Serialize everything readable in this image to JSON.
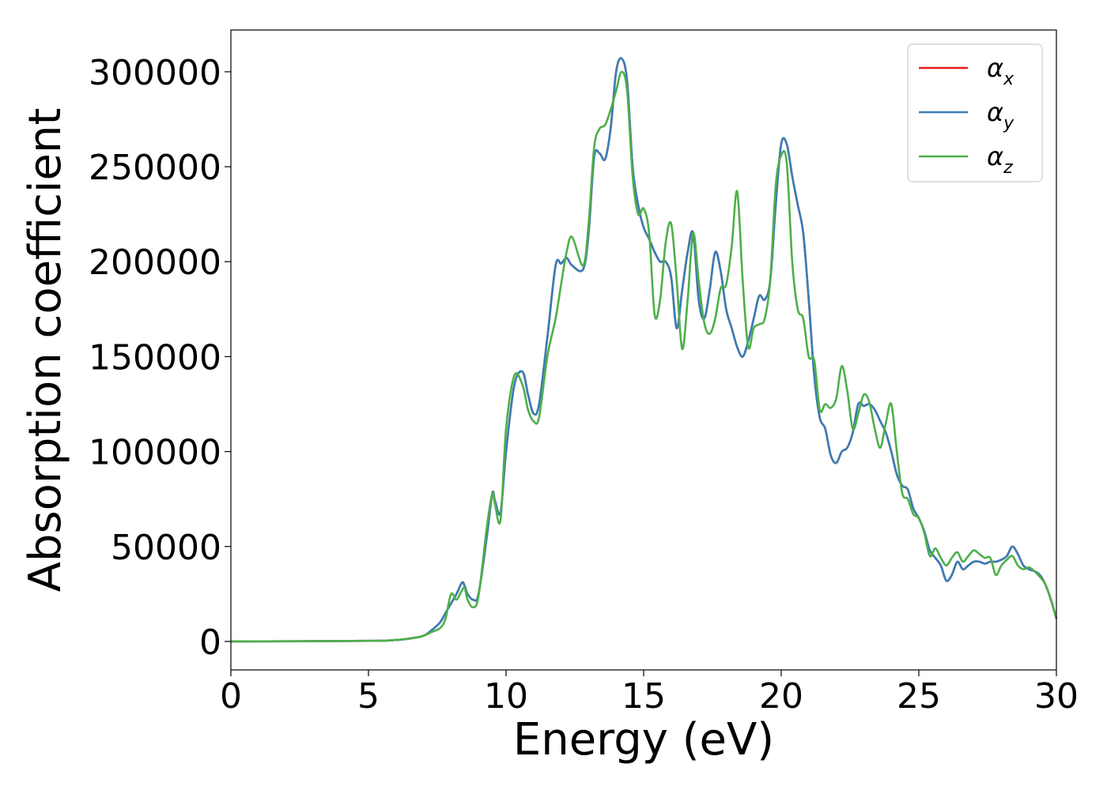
{
  "chart_data": {
    "type": "line",
    "title": "",
    "xlabel": "Energy (eV)",
    "ylabel": "Absorption coefficient",
    "xlim": [
      0,
      30
    ],
    "ylim": [
      -15000,
      322000
    ],
    "xticks": [
      0,
      5,
      10,
      15,
      20,
      25,
      30
    ],
    "xtick_labels": [
      "0",
      "5",
      "10",
      "15",
      "20",
      "25",
      "30"
    ],
    "yticks": [
      0,
      50000,
      100000,
      150000,
      200000,
      250000,
      300000
    ],
    "ytick_labels": [
      "0",
      "50000",
      "100000",
      "150000",
      "200000",
      "250000",
      "300000"
    ],
    "grid": false,
    "legend_position": "top-right",
    "series": [
      {
        "name": "αx",
        "legend_symbol": "α",
        "legend_sub": "x",
        "color": "#e41a1c",
        "x": [
          0,
          5,
          6,
          6.5,
          7,
          7.3,
          7.6,
          7.8,
          8.0,
          8.2,
          8.4,
          8.5,
          8.6,
          8.8,
          9.0,
          9.3,
          9.5,
          9.6,
          9.8,
          10.0,
          10.3,
          10.6,
          10.8,
          11.0,
          11.2,
          11.5,
          11.8,
          12.0,
          12.2,
          12.4,
          12.8,
          13.0,
          13.2,
          13.4,
          13.6,
          13.8,
          14.0,
          14.2,
          14.4,
          14.6,
          14.8,
          15.0,
          15.2,
          15.4,
          15.6,
          15.8,
          16.0,
          16.2,
          16.4,
          16.6,
          16.8,
          17.0,
          17.2,
          17.4,
          17.6,
          17.8,
          18.0,
          18.2,
          18.4,
          18.6,
          18.8,
          19.0,
          19.2,
          19.4,
          19.6,
          19.8,
          20.0,
          20.2,
          20.4,
          20.6,
          20.8,
          21.0,
          21.2,
          21.4,
          21.6,
          21.8,
          22.0,
          22.2,
          22.4,
          22.6,
          22.8,
          23.0,
          23.2,
          23.4,
          23.6,
          23.8,
          24.0,
          24.2,
          24.4,
          24.6,
          24.8,
          25.0,
          25.2,
          25.4,
          25.6,
          25.8,
          26.0,
          26.2,
          26.4,
          26.6,
          26.8,
          27.0,
          27.2,
          27.4,
          27.6,
          27.8,
          28.0,
          28.2,
          28.4,
          28.6,
          28.8,
          29.0,
          29.2,
          29.4,
          29.6,
          29.8,
          30.0
        ],
        "values": [
          0,
          300,
          800,
          1500,
          3000,
          6000,
          10000,
          15000,
          20000,
          25000,
          31000,
          29000,
          25000,
          22000,
          25000,
          55000,
          78000,
          74000,
          68000,
          100000,
          135000,
          142000,
          130000,
          120000,
          125000,
          160000,
          198000,
          199000,
          202000,
          198000,
          196000,
          215000,
          255000,
          257000,
          254000,
          270000,
          300000,
          307000,
          295000,
          250000,
          230000,
          218000,
          212000,
          205000,
          200000,
          200000,
          192000,
          165000,
          185000,
          205000,
          215000,
          180000,
          170000,
          185000,
          205000,
          195000,
          175000,
          165000,
          155000,
          150000,
          158000,
          170000,
          182000,
          180000,
          190000,
          230000,
          262000,
          262000,
          245000,
          230000,
          215000,
          180000,
          140000,
          118000,
          112000,
          98000,
          94000,
          100000,
          102000,
          110000,
          125000,
          124000,
          125000,
          122000,
          116000,
          110000,
          100000,
          88000,
          82000,
          80000,
          70000,
          65000,
          58000,
          48000,
          44000,
          40000,
          32000,
          35000,
          42000,
          38000,
          40000,
          42000,
          42000,
          41000,
          42000,
          42000,
          43000,
          45000,
          50000,
          46000,
          40000,
          38000,
          37000,
          35000,
          30000,
          22000,
          12000
        ]
      },
      {
        "name": "αy",
        "legend_symbol": "α",
        "legend_sub": "y",
        "color": "#377eb8",
        "x": [
          0,
          5,
          6,
          6.5,
          7,
          7.3,
          7.6,
          7.8,
          8.0,
          8.2,
          8.4,
          8.5,
          8.6,
          8.8,
          9.0,
          9.3,
          9.5,
          9.6,
          9.8,
          10.0,
          10.3,
          10.6,
          10.8,
          11.0,
          11.2,
          11.5,
          11.8,
          12.0,
          12.2,
          12.4,
          12.8,
          13.0,
          13.2,
          13.4,
          13.6,
          13.8,
          14.0,
          14.2,
          14.4,
          14.6,
          14.8,
          15.0,
          15.2,
          15.4,
          15.6,
          15.8,
          16.0,
          16.2,
          16.4,
          16.6,
          16.8,
          17.0,
          17.2,
          17.4,
          17.6,
          17.8,
          18.0,
          18.2,
          18.4,
          18.6,
          18.8,
          19.0,
          19.2,
          19.4,
          19.6,
          19.8,
          20.0,
          20.2,
          20.4,
          20.6,
          20.8,
          21.0,
          21.2,
          21.4,
          21.6,
          21.8,
          22.0,
          22.2,
          22.4,
          22.6,
          22.8,
          23.0,
          23.2,
          23.4,
          23.6,
          23.8,
          24.0,
          24.2,
          24.4,
          24.6,
          24.8,
          25.0,
          25.2,
          25.4,
          25.6,
          25.8,
          26.0,
          26.2,
          26.4,
          26.6,
          26.8,
          27.0,
          27.2,
          27.4,
          27.6,
          27.8,
          28.0,
          28.2,
          28.4,
          28.6,
          28.8,
          29.0,
          29.2,
          29.4,
          29.6,
          29.8,
          30.0
        ],
        "values": [
          0,
          300,
          800,
          1500,
          3000,
          6000,
          10000,
          15000,
          20000,
          25000,
          31000,
          29000,
          25000,
          22000,
          25000,
          55000,
          78000,
          74000,
          68000,
          100000,
          135000,
          142000,
          130000,
          120000,
          125000,
          160000,
          198000,
          199000,
          202000,
          198000,
          196000,
          215000,
          255000,
          257000,
          254000,
          270000,
          300000,
          307000,
          295000,
          250000,
          230000,
          218000,
          212000,
          205000,
          200000,
          200000,
          192000,
          165000,
          185000,
          205000,
          215000,
          180000,
          170000,
          185000,
          205000,
          195000,
          175000,
          165000,
          155000,
          150000,
          158000,
          170000,
          182000,
          180000,
          190000,
          230000,
          262000,
          262000,
          245000,
          230000,
          215000,
          180000,
          140000,
          118000,
          112000,
          98000,
          94000,
          100000,
          102000,
          110000,
          125000,
          124000,
          125000,
          122000,
          116000,
          110000,
          100000,
          88000,
          82000,
          80000,
          70000,
          65000,
          58000,
          48000,
          44000,
          40000,
          32000,
          35000,
          42000,
          38000,
          40000,
          42000,
          42000,
          41000,
          42000,
          42000,
          43000,
          45000,
          50000,
          46000,
          40000,
          38000,
          37000,
          35000,
          30000,
          22000,
          12000
        ]
      },
      {
        "name": "αz",
        "legend_symbol": "α",
        "legend_sub": "z",
        "color": "#4daf4a",
        "x": [
          0,
          5,
          6,
          6.5,
          7,
          7.3,
          7.6,
          7.8,
          8.0,
          8.2,
          8.4,
          8.5,
          8.6,
          8.8,
          9.0,
          9.3,
          9.5,
          9.6,
          9.8,
          10.0,
          10.3,
          10.6,
          10.8,
          11.0,
          11.2,
          11.5,
          11.8,
          12.0,
          12.2,
          12.4,
          12.8,
          13.0,
          13.2,
          13.4,
          13.6,
          13.8,
          14.0,
          14.2,
          14.4,
          14.6,
          14.8,
          15.0,
          15.2,
          15.4,
          15.6,
          15.8,
          16.0,
          16.2,
          16.4,
          16.6,
          16.8,
          17.0,
          17.2,
          17.4,
          17.6,
          17.8,
          18.0,
          18.2,
          18.4,
          18.6,
          18.8,
          19.0,
          19.2,
          19.4,
          19.6,
          19.8,
          20.0,
          20.2,
          20.4,
          20.6,
          20.8,
          21.0,
          21.2,
          21.4,
          21.6,
          21.8,
          22.0,
          22.2,
          22.4,
          22.6,
          22.8,
          23.0,
          23.2,
          23.4,
          23.6,
          23.8,
          24.0,
          24.2,
          24.4,
          24.6,
          24.8,
          25.0,
          25.2,
          25.4,
          25.6,
          25.8,
          26.0,
          26.2,
          26.4,
          26.6,
          26.8,
          27.0,
          27.2,
          27.4,
          27.6,
          27.8,
          28.0,
          28.2,
          28.4,
          28.6,
          28.8,
          29.0,
          29.2,
          29.4,
          29.6,
          29.8,
          30.0
        ],
        "values": [
          0,
          300,
          800,
          1500,
          3000,
          5000,
          7000,
          12000,
          25000,
          22000,
          27000,
          28000,
          22000,
          18000,
          24000,
          60000,
          78000,
          72000,
          64000,
          112000,
          140000,
          135000,
          122000,
          116000,
          118000,
          150000,
          170000,
          188000,
          205000,
          213000,
          198000,
          220000,
          260000,
          270000,
          272000,
          280000,
          290000,
          300000,
          290000,
          245000,
          225000,
          228000,
          215000,
          172000,
          180000,
          210000,
          220000,
          190000,
          154000,
          180000,
          215000,
          190000,
          168000,
          162000,
          170000,
          186000,
          188000,
          208000,
          237000,
          190000,
          155000,
          165000,
          167000,
          170000,
          190000,
          240000,
          256000,
          252000,
          200000,
          175000,
          170000,
          150000,
          148000,
          122000,
          125000,
          123000,
          128000,
          145000,
          132000,
          112000,
          120000,
          130000,
          126000,
          112000,
          102000,
          115000,
          125000,
          100000,
          78000,
          75000,
          67000,
          65000,
          57000,
          45000,
          49000,
          44000,
          40000,
          44000,
          47000,
          42000,
          45000,
          48000,
          46000,
          44000,
          44000,
          35000,
          40000,
          43000,
          45000,
          40000,
          38000,
          39000,
          37000,
          34000,
          30000,
          22000,
          12000
        ]
      }
    ]
  }
}
